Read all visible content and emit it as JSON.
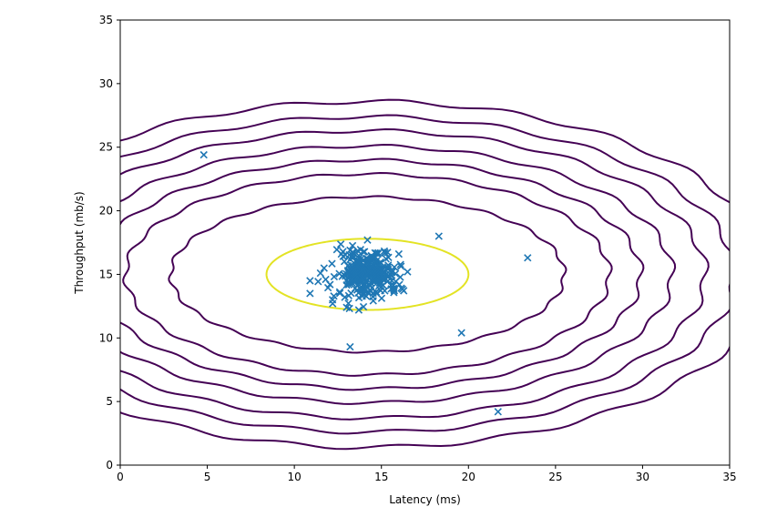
{
  "chart_data": {
    "type": "scatter",
    "title": "",
    "xlabel": "Latency (ms)",
    "ylabel": "Throughput (mb/s)",
    "xlim": [
      0,
      35
    ],
    "ylim": [
      0,
      35
    ],
    "xticks": [
      "0",
      "5",
      "10",
      "15",
      "20",
      "25",
      "30",
      "35"
    ],
    "yticks": [
      "0",
      "5",
      "10",
      "15",
      "20",
      "25",
      "30",
      "35"
    ],
    "grid": false,
    "legend": "none",
    "marker": "x",
    "marker_color": "#1f77b4",
    "cluster": {
      "center": [
        14.1,
        15.0
      ],
      "spread": [
        0.9,
        0.9
      ],
      "count": 300
    },
    "outliers": [
      [
        4.8,
        24.4
      ],
      [
        18.3,
        18.0
      ],
      [
        23.4,
        16.3
      ],
      [
        19.6,
        10.4
      ],
      [
        21.7,
        4.2
      ],
      [
        13.2,
        9.3
      ],
      [
        10.9,
        14.5
      ],
      [
        10.9,
        13.5
      ],
      [
        12.2,
        12.7
      ],
      [
        13.0,
        12.4
      ],
      [
        13.7,
        12.2
      ],
      [
        12.7,
        16.6
      ],
      [
        13.2,
        16.9
      ],
      [
        14.2,
        17.7
      ],
      [
        16.5,
        15.2
      ],
      [
        11.5,
        15.1
      ],
      [
        12.9,
        13.2
      ],
      [
        16.0,
        16.6
      ],
      [
        15.7,
        13.9
      ],
      [
        11.8,
        14.6
      ]
    ],
    "contours": {
      "center": [
        14.2,
        15.0
      ],
      "levels": [
        {
          "rx": 5.8,
          "ry": 2.8,
          "color": "#e3e324"
        },
        {
          "rx": 11.3,
          "ry": 6.1,
          "color": "#440154"
        },
        {
          "rx": 13.9,
          "ry": 7.9,
          "color": "#440154"
        },
        {
          "rx": 15.7,
          "ry": 9.0,
          "color": "#440154"
        },
        {
          "rx": 17.5,
          "ry": 10.1,
          "color": "#440154"
        },
        {
          "rx": 19.4,
          "ry": 11.3,
          "color": "#440154"
        },
        {
          "rx": 21.1,
          "ry": 12.4,
          "color": "#440154"
        },
        {
          "rx": 22.9,
          "ry": 13.6,
          "color": "#440154"
        }
      ]
    }
  }
}
